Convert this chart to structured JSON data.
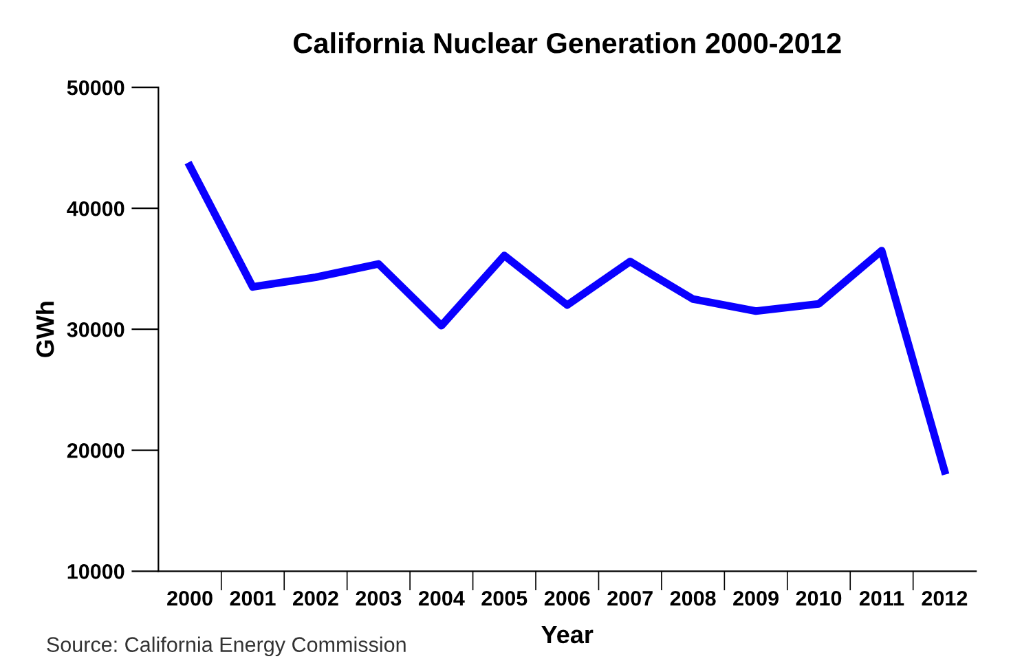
{
  "chart_data": {
    "type": "line",
    "title": "California Nuclear Generation 2000-2012",
    "xlabel": "Year",
    "ylabel": "GWh",
    "categories": [
      "2000",
      "2001",
      "2002",
      "2003",
      "2004",
      "2005",
      "2006",
      "2007",
      "2008",
      "2009",
      "2010",
      "2011",
      "2012"
    ],
    "series": [
      {
        "color": "#0a00ff",
        "values": [
          43500,
          33500,
          34300,
          35400,
          30300,
          36100,
          32000,
          35600,
          32500,
          31500,
          32100,
          36500,
          18300
        ]
      }
    ],
    "ylim": [
      10000,
      50000
    ],
    "yticks": [
      10000,
      20000,
      30000,
      40000,
      50000
    ],
    "grid": false,
    "legend": false,
    "marker": "none",
    "line_style": "solid",
    "annotations": [
      "Source: California Energy Commission"
    ]
  }
}
